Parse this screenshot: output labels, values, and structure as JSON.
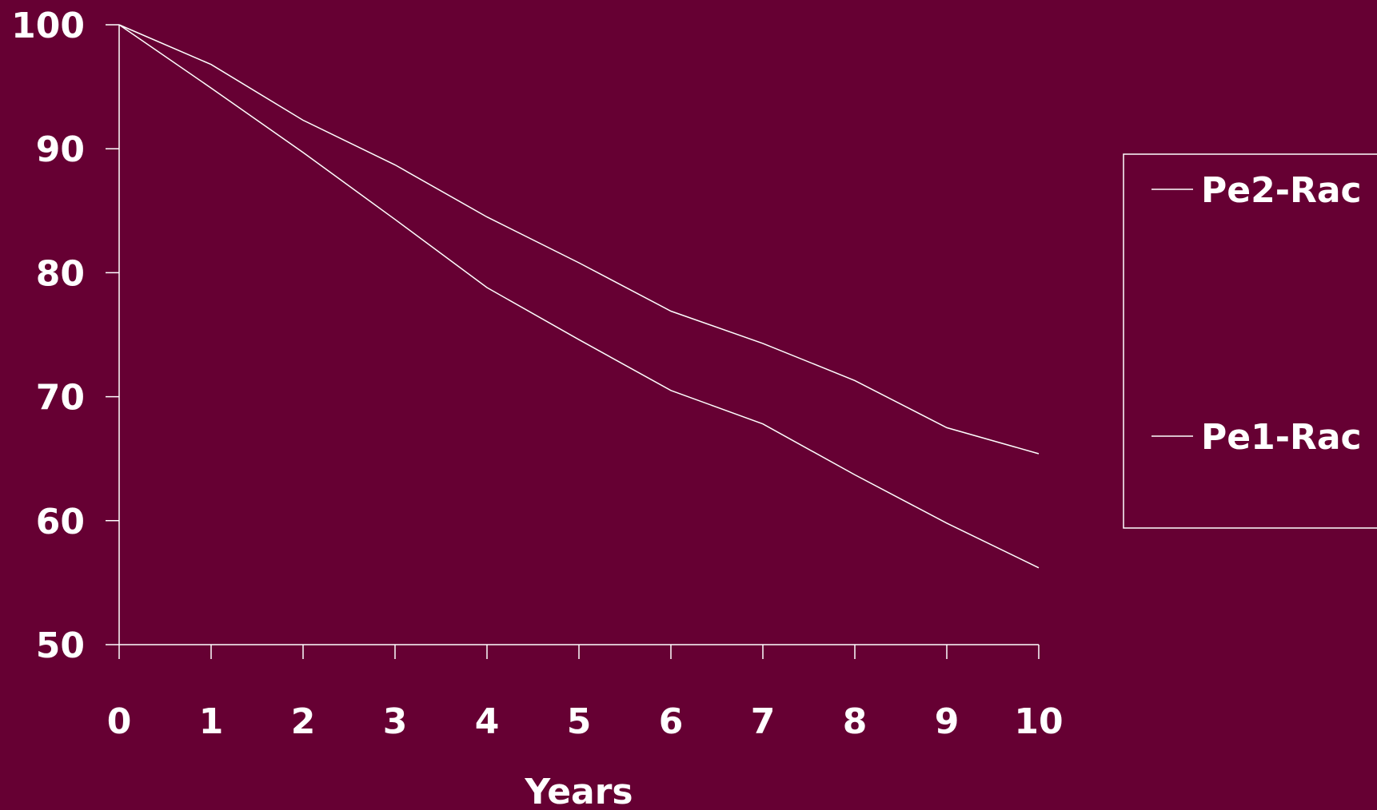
{
  "colors": {
    "background": "#660033",
    "foreground": "#ffffff"
  },
  "chart_data": {
    "type": "line",
    "title": "",
    "xlabel": "Years",
    "ylabel": "",
    "x": [
      0,
      1,
      2,
      3,
      4,
      5,
      6,
      7,
      8,
      9,
      10
    ],
    "xticks": [
      "0",
      "1",
      "2",
      "3",
      "4",
      "5",
      "6",
      "7",
      "8",
      "9",
      "10"
    ],
    "yticks": [
      "100",
      "90",
      "80",
      "70",
      "60",
      "50"
    ],
    "xlim": [
      0,
      10
    ],
    "ylim": [
      50,
      100
    ],
    "grid": false,
    "legend_position": "right",
    "series": [
      {
        "name": "Pe2-Rac",
        "values": [
          100,
          96.8,
          92.3,
          88.7,
          84.5,
          80.8,
          76.9,
          74.3,
          71.3,
          67.5,
          65.4
        ]
      },
      {
        "name": "Pe1-Rac",
        "values": [
          100,
          94.9,
          89.7,
          84.3,
          78.8,
          74.6,
          70.5,
          67.8,
          63.7,
          59.8,
          56.2
        ]
      }
    ]
  }
}
